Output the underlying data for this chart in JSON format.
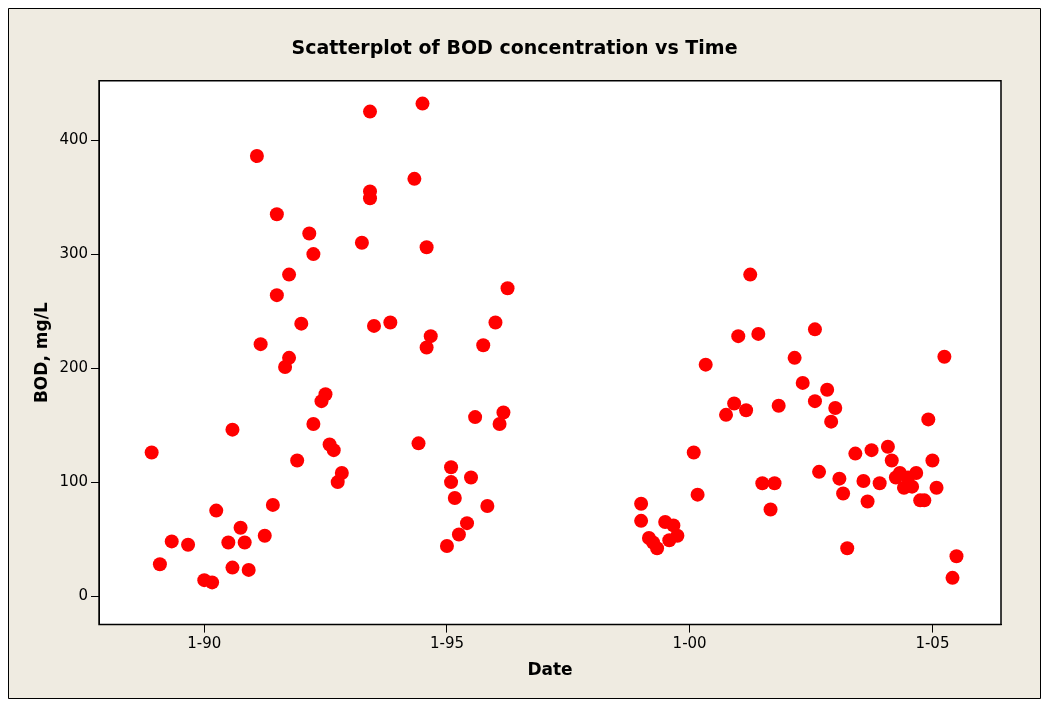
{
  "chart_data": {
    "type": "scatter",
    "title": "Scatterplot of BOD concentration vs Time",
    "xlabel": "Date",
    "ylabel": "BOD, mg/L",
    "xlim": [
      "1987-11",
      "2006-06"
    ],
    "ylim": [
      -25,
      452
    ],
    "xticks": [
      {
        "value": "1990-01",
        "label": "1-90"
      },
      {
        "value": "1995-01",
        "label": "1-95"
      },
      {
        "value": "2000-01",
        "label": "1-00"
      },
      {
        "value": "2005-01",
        "label": "1-05"
      }
    ],
    "yticks": [
      0,
      100,
      200,
      300,
      400
    ],
    "grid": false,
    "legend": false,
    "marker": "circle",
    "series": [
      {
        "color": "#ff0000",
        "x": [
          "1988-12",
          "1989-02",
          "1989-05",
          "1989-09",
          "1990-01",
          "1990-03",
          "1990-04",
          "1990-07",
          "1990-08",
          "1990-08",
          "1990-10",
          "1990-11",
          "1990-12",
          "1991-02",
          "1991-03",
          "1991-04",
          "1991-06",
          "1991-07",
          "1991-07",
          "1991-09",
          "1991-10",
          "1991-10",
          "1991-12",
          "1992-01",
          "1992-03",
          "1992-04",
          "1992-04",
          "1992-06",
          "1992-07",
          "1992-08",
          "1992-09",
          "1992-10",
          "1992-11",
          "1993-04",
          "1993-06",
          "1993-06",
          "1993-06",
          "1993-07",
          "1993-11",
          "1994-05",
          "1994-06",
          "1994-07",
          "1994-08",
          "1994-08",
          "1994-09",
          "1995-01",
          "1995-02",
          "1995-02",
          "1995-03",
          "1995-04",
          "1995-06",
          "1995-07",
          "1995-08",
          "1995-10",
          "1995-11",
          "1996-01",
          "1996-02",
          "1996-03",
          "1996-04",
          "1999-01",
          "1999-01",
          "1999-03",
          "1999-04",
          "1999-05",
          "1999-07",
          "1999-08",
          "1999-09",
          "1999-10",
          "2000-02",
          "2000-03",
          "2000-05",
          "2000-10",
          "2000-12",
          "2001-01",
          "2001-03",
          "2001-04",
          "2001-06",
          "2001-07",
          "2001-09",
          "2001-10",
          "2001-11",
          "2002-03",
          "2002-05",
          "2002-08",
          "2002-08",
          "2002-09",
          "2002-11",
          "2002-12",
          "2003-01",
          "2003-02",
          "2003-03",
          "2003-04",
          "2003-06",
          "2003-08",
          "2003-09",
          "2003-10",
          "2003-12",
          "2004-02",
          "2004-03",
          "2004-04",
          "2004-05",
          "2004-06",
          "2004-07",
          "2004-08",
          "2004-09",
          "2004-10",
          "2004-11",
          "2004-12",
          "2005-01",
          "2005-02",
          "2005-04",
          "2005-06",
          "2005-07"
        ],
        "values": [
          126,
          28,
          48,
          45,
          14,
          12,
          75,
          47,
          146,
          25,
          60,
          47,
          23,
          386,
          221,
          53,
          80,
          264,
          335,
          201,
          209,
          282,
          119,
          239,
          318,
          300,
          151,
          171,
          177,
          133,
          128,
          100,
          108,
          310,
          425,
          355,
          349,
          237,
          240,
          366,
          134,
          432,
          306,
          218,
          228,
          44,
          113,
          100,
          86,
          54,
          64,
          104,
          157,
          220,
          79,
          240,
          151,
          161,
          270,
          81,
          66,
          51,
          47,
          42,
          65,
          49,
          62,
          53,
          126,
          89,
          203,
          159,
          169,
          228,
          163,
          282,
          230,
          99,
          76,
          99,
          167,
          209,
          187,
          234,
          171,
          109,
          181,
          153,
          165,
          103,
          90,
          42,
          125,
          101,
          83,
          128,
          99,
          131,
          119,
          104,
          108,
          95,
          104,
          96,
          108,
          84,
          84,
          155,
          119,
          95,
          210,
          16,
          35
        ]
      }
    ]
  }
}
